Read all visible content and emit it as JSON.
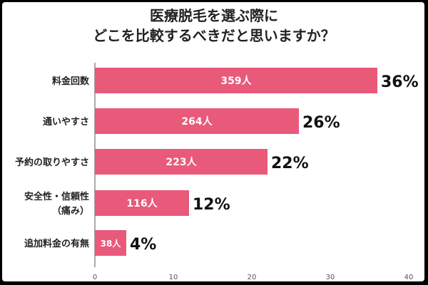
{
  "title_lines": [
    "医療脱毛を選ぶ際に",
    "どこを比較するべきだと思いますか？"
  ],
  "chart_data": {
    "type": "bar",
    "orientation": "horizontal",
    "categories": [
      [
        "料金回数"
      ],
      [
        "通いやすさ"
      ],
      [
        "予約の取りやすさ"
      ],
      [
        "安全性・信頼性",
        "（痛み）"
      ],
      [
        "追加料金の有無"
      ]
    ],
    "values": [
      36,
      26,
      22,
      12,
      4
    ],
    "percent_labels": [
      "36%",
      "26%",
      "22%",
      "12%",
      "4%"
    ],
    "count_labels": [
      "359人",
      "264人",
      "223人",
      "116人",
      "38人"
    ],
    "xlim": [
      0,
      40
    ],
    "xticks": [
      "0",
      "10",
      "20",
      "30",
      "40"
    ],
    "bar_color": "#e8597a",
    "grid": false
  }
}
